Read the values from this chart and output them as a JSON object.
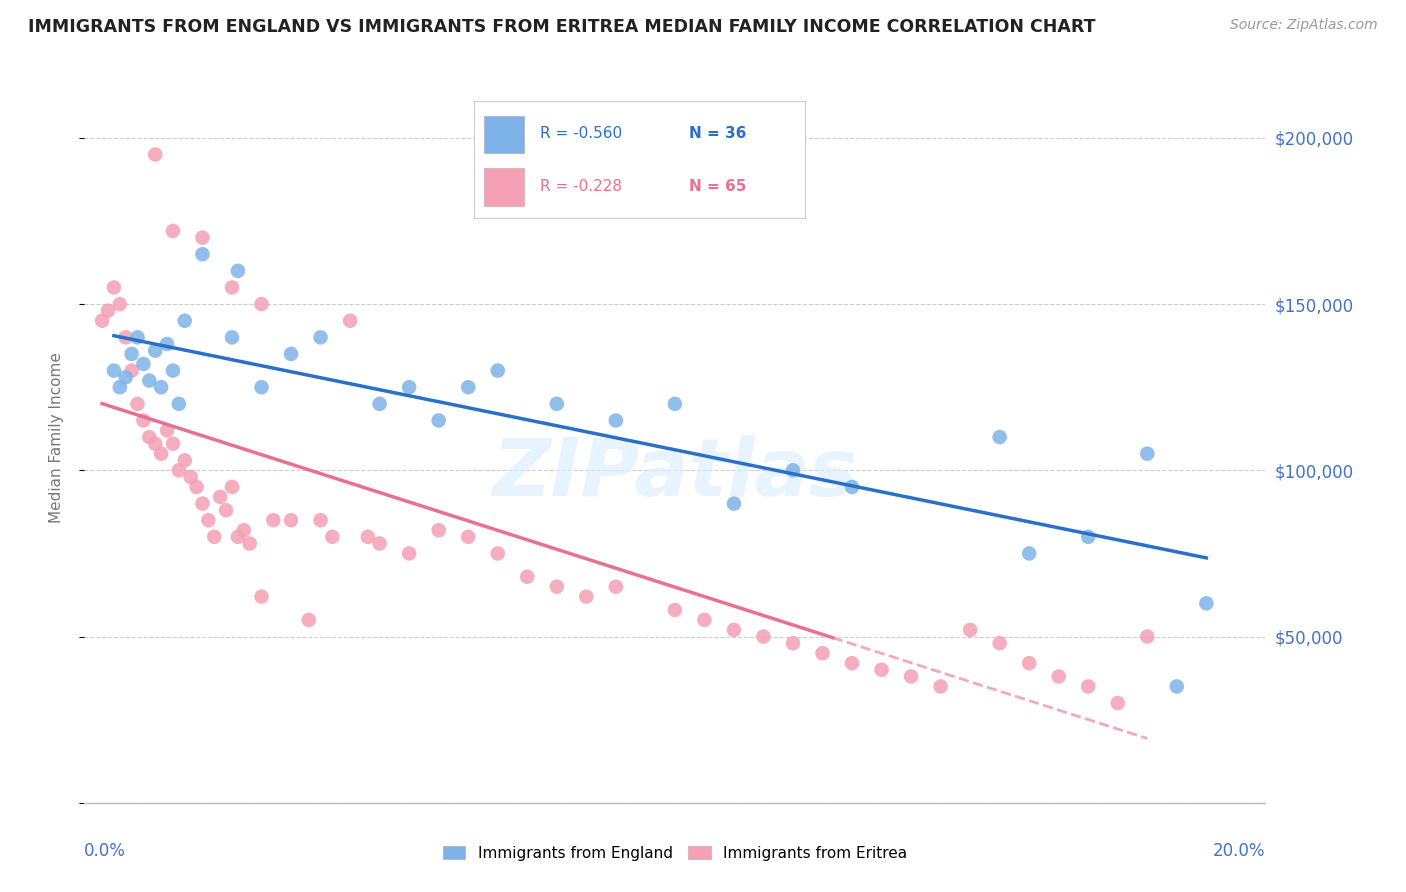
{
  "title": "IMMIGRANTS FROM ENGLAND VS IMMIGRANTS FROM ERITREA MEDIAN FAMILY INCOME CORRELATION CHART",
  "source": "Source: ZipAtlas.com",
  "ylabel": "Median Family Income",
  "yticks": [
    0,
    50000,
    100000,
    150000,
    200000
  ],
  "ytick_labels": [
    "",
    "$50,000",
    "$100,000",
    "$150,000",
    "$200,000"
  ],
  "xlim": [
    0.0,
    0.2
  ],
  "ylim": [
    0,
    220000
  ],
  "england_color": "#7eb3e8",
  "eritrea_color": "#f4a0b5",
  "england_R": -0.56,
  "england_N": 36,
  "eritrea_R": -0.228,
  "eritrea_N": 65,
  "england_line_color": "#2970c8",
  "eritrea_line_color": "#e87090",
  "watermark": "ZIPatlas",
  "england_x": [
    0.005,
    0.006,
    0.007,
    0.008,
    0.009,
    0.01,
    0.011,
    0.012,
    0.013,
    0.014,
    0.015,
    0.016,
    0.017,
    0.02,
    0.025,
    0.026,
    0.03,
    0.035,
    0.04,
    0.05,
    0.055,
    0.06,
    0.065,
    0.07,
    0.08,
    0.09,
    0.1,
    0.11,
    0.12,
    0.13,
    0.155,
    0.16,
    0.17,
    0.18,
    0.185,
    0.19
  ],
  "england_y": [
    130000,
    125000,
    128000,
    135000,
    140000,
    132000,
    127000,
    136000,
    125000,
    138000,
    130000,
    120000,
    145000,
    165000,
    140000,
    160000,
    125000,
    135000,
    140000,
    120000,
    125000,
    115000,
    125000,
    130000,
    120000,
    115000,
    120000,
    90000,
    100000,
    95000,
    110000,
    75000,
    80000,
    105000,
    35000,
    60000
  ],
  "eritrea_x": [
    0.003,
    0.004,
    0.005,
    0.006,
    0.007,
    0.008,
    0.009,
    0.01,
    0.011,
    0.012,
    0.013,
    0.014,
    0.015,
    0.016,
    0.017,
    0.018,
    0.019,
    0.02,
    0.021,
    0.022,
    0.023,
    0.024,
    0.025,
    0.026,
    0.027,
    0.028,
    0.03,
    0.032,
    0.035,
    0.038,
    0.04,
    0.042,
    0.045,
    0.048,
    0.05,
    0.055,
    0.06,
    0.065,
    0.07,
    0.075,
    0.08,
    0.085,
    0.09,
    0.1,
    0.105,
    0.11,
    0.115,
    0.12,
    0.125,
    0.13,
    0.135,
    0.14,
    0.145,
    0.15,
    0.155,
    0.16,
    0.165,
    0.17,
    0.175,
    0.18,
    0.012,
    0.015,
    0.02,
    0.025,
    0.03
  ],
  "eritrea_y": [
    145000,
    148000,
    155000,
    150000,
    140000,
    130000,
    120000,
    115000,
    110000,
    108000,
    105000,
    112000,
    108000,
    100000,
    103000,
    98000,
    95000,
    90000,
    85000,
    80000,
    92000,
    88000,
    95000,
    80000,
    82000,
    78000,
    62000,
    85000,
    85000,
    55000,
    85000,
    80000,
    145000,
    80000,
    78000,
    75000,
    82000,
    80000,
    75000,
    68000,
    65000,
    62000,
    65000,
    58000,
    55000,
    52000,
    50000,
    48000,
    45000,
    42000,
    40000,
    38000,
    35000,
    52000,
    48000,
    42000,
    38000,
    35000,
    30000,
    50000,
    195000,
    172000,
    170000,
    155000,
    150000
  ]
}
